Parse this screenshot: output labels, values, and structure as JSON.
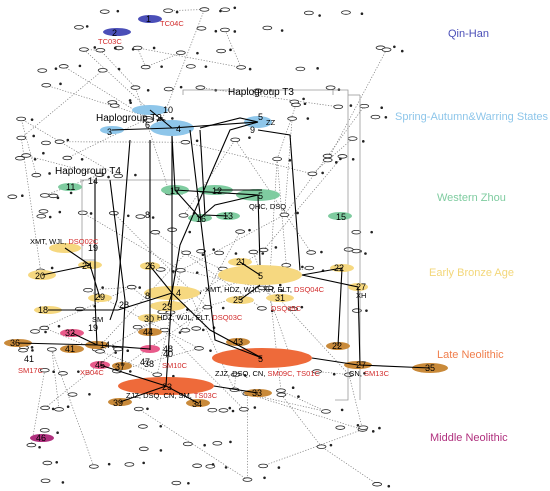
{
  "periods": {
    "qin_han": "Qin-Han",
    "spring_autumn": "Spring-Autumn&Warring States",
    "western_zhou": "Western Zhou",
    "early_bronze": "Early Bronze Age",
    "late_neolithic": "Late Neolithic",
    "middle_neolithic": "Middle Neolithic"
  },
  "haplogroups": {
    "t2": "Haplogroup T2",
    "t3": "Haplogroup T3",
    "t4": "Haplogroup T4"
  },
  "red_labels": {
    "tc04c": "TC04C",
    "tc03c": "TC03C",
    "sm17c": "SM17C",
    "xb04c": "XB04C",
    "sm10c": "SM10C"
  },
  "site_groups": {
    "qhc_dsq": "QHC, DSQ",
    "xmt_wjl": "XMT, WJL, ",
    "dsq02c": "DSQ02C",
    "xmt_hdz": "XMT, HDZ, WJL, XH, ELT, ",
    "dsq04c": "DSQ04C",
    "dsq05c": "DSQ05C",
    "hdz_wjl": "HDZ, WJL, ELT, ",
    "dsq03c": "DSQ03C",
    "zjz_dsq": "ZJZ, DSQ, CN, ",
    "sm09c": "SM09C, TS01C",
    "cn": "CN, ",
    "sm13c": "SM13C",
    "zjz_dsq_sm": "ZJZ, DSQ, CN, SM, ",
    "ts03c": "TS03C",
    "sm": "SM",
    "xh": "XH",
    "zz": "ZZ"
  },
  "nodes": {
    "n1": "1",
    "n2": "2",
    "n3": "3",
    "n4a": "4",
    "n4b": "4",
    "n5a": "5",
    "n5b": "5",
    "n5c": "5",
    "n5d": "5",
    "n5e": "5",
    "n6": "6",
    "n7": "7",
    "n8": "8",
    "n8b": "8",
    "n9": "9",
    "n10": "10",
    "n11": "11",
    "n12": "12",
    "n13": "13",
    "n14a": "14",
    "n14b": "14",
    "n15": "15",
    "n16": "16",
    "n17": "17",
    "n18": "18",
    "n19a": "19",
    "n19b": "19",
    "n20": "20",
    "n21": "21",
    "n22a": "22",
    "n22b": "22",
    "n23a": "23",
    "n23b": "23",
    "n24": "24",
    "n25": "25",
    "n26": "26",
    "n27a": "27",
    "n27b": "27",
    "n28": "28",
    "n29": "29",
    "n30": "30",
    "n31": "31",
    "n32": "32",
    "n33": "33",
    "n34": "34",
    "n35": "35",
    "n36": "36",
    "n37": "37",
    "n38": "38",
    "n39": "39",
    "n40": "40",
    "n41a": "41",
    "n41b": "41",
    "n43": "43",
    "n44": "44",
    "n45": "45",
    "n46": "46",
    "n47": "47",
    "n48": "48"
  },
  "colors": {
    "qin_han": "#4b4fb8",
    "spring_autumn": "#8ec6ea",
    "western_zhou": "#7fcca0",
    "early_bronze": "#f3d77a",
    "late_neolithic": "#f07e4c",
    "middle_neolithic": "#b0307e",
    "red": "#d22b2b",
    "bronze_ellipse": "#f6d880",
    "late_ellipse": "#ee6a3a",
    "brown_ellipse": "#c98a3a",
    "neo_pink": "#e85a8a"
  }
}
